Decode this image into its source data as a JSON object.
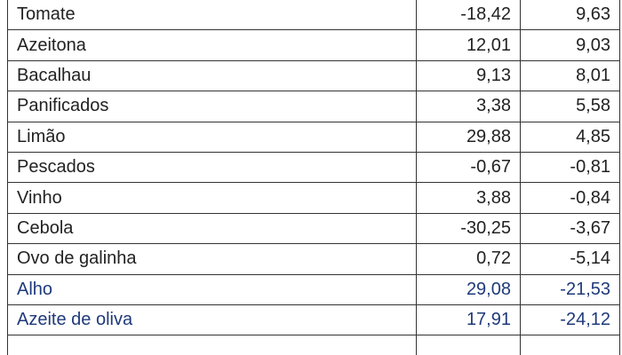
{
  "table": {
    "rows": [
      [
        "Tomate",
        "-18,42",
        "9,63"
      ],
      [
        "Azeitona",
        "12,01",
        "9,03"
      ],
      [
        "Bacalhau",
        "9,13",
        "8,01"
      ],
      [
        "Panificados",
        "3,38",
        "5,58"
      ],
      [
        "Limão",
        "29,88",
        "4,85"
      ],
      [
        "Pescados",
        "-0,67",
        "-0,81"
      ],
      [
        "Vinho",
        "3,88",
        "-0,84"
      ],
      [
        "Cebola",
        "-30,25",
        "-3,67"
      ],
      [
        "Ovo de galinha",
        "0,72",
        "-5,14"
      ],
      [
        "Alho",
        "29,08",
        "-21,53"
      ],
      [
        "Azeite de oliva",
        "17,91",
        "-24,12"
      ]
    ]
  }
}
